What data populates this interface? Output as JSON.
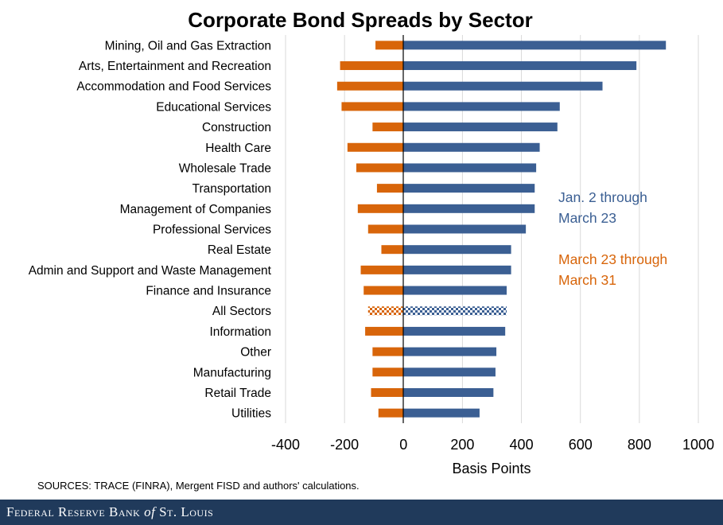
{
  "chart_data": {
    "type": "bar",
    "orientation": "horizontal",
    "title": "Corporate Bond Spreads by Sector",
    "xlabel": "Basis Points",
    "ylabel": "",
    "xlim": [
      -400,
      1000
    ],
    "xticks": [
      -400,
      -200,
      0,
      200,
      400,
      600,
      800,
      1000
    ],
    "grid": true,
    "categories": [
      "Mining, Oil and Gas Extraction",
      "Arts, Entertainment and Recreation",
      "Accommodation and Food Services",
      "Educational Services",
      "Construction",
      "Health Care",
      "Wholesale Trade",
      "Transportation",
      "Management of Companies",
      "Professional Services",
      "Real Estate",
      "Admin and Support and Waste Management",
      "Finance and Insurance",
      "All Sectors",
      "Information",
      "Other",
      "Manufacturing",
      "Retail Trade",
      "Utilities"
    ],
    "highlight_category": "All Sectors",
    "series": [
      {
        "name": "Jan. 2 through March 23",
        "color": "#3b5f93",
        "values": [
          890,
          790,
          675,
          530,
          522,
          462,
          450,
          445,
          445,
          415,
          365,
          365,
          350,
          350,
          345,
          315,
          312,
          305,
          258
        ]
      },
      {
        "name": "March 23 through March 31",
        "color": "#d8650a",
        "values": [
          -95,
          -215,
          -225,
          -210,
          -105,
          -190,
          -160,
          -90,
          -155,
          -120,
          -75,
          -145,
          -135,
          -120,
          -130,
          -105,
          -105,
          -110,
          -85
        ]
      }
    ],
    "legend": {
      "placement": "inline-right",
      "entries": [
        {
          "line1": "Jan. 2 through",
          "line2": "March 23",
          "color": "#3b5f93"
        },
        {
          "line1": "March 23 through",
          "line2": "March 31",
          "color": "#d8650a"
        }
      ]
    }
  },
  "source": "SOURCES: TRACE (FINRA), Mergent FISD and authors' calculations.",
  "footer": {
    "brand_prefix": "Federal Reserve Bank ",
    "brand_italic": "of",
    "brand_suffix": " St. Louis"
  }
}
